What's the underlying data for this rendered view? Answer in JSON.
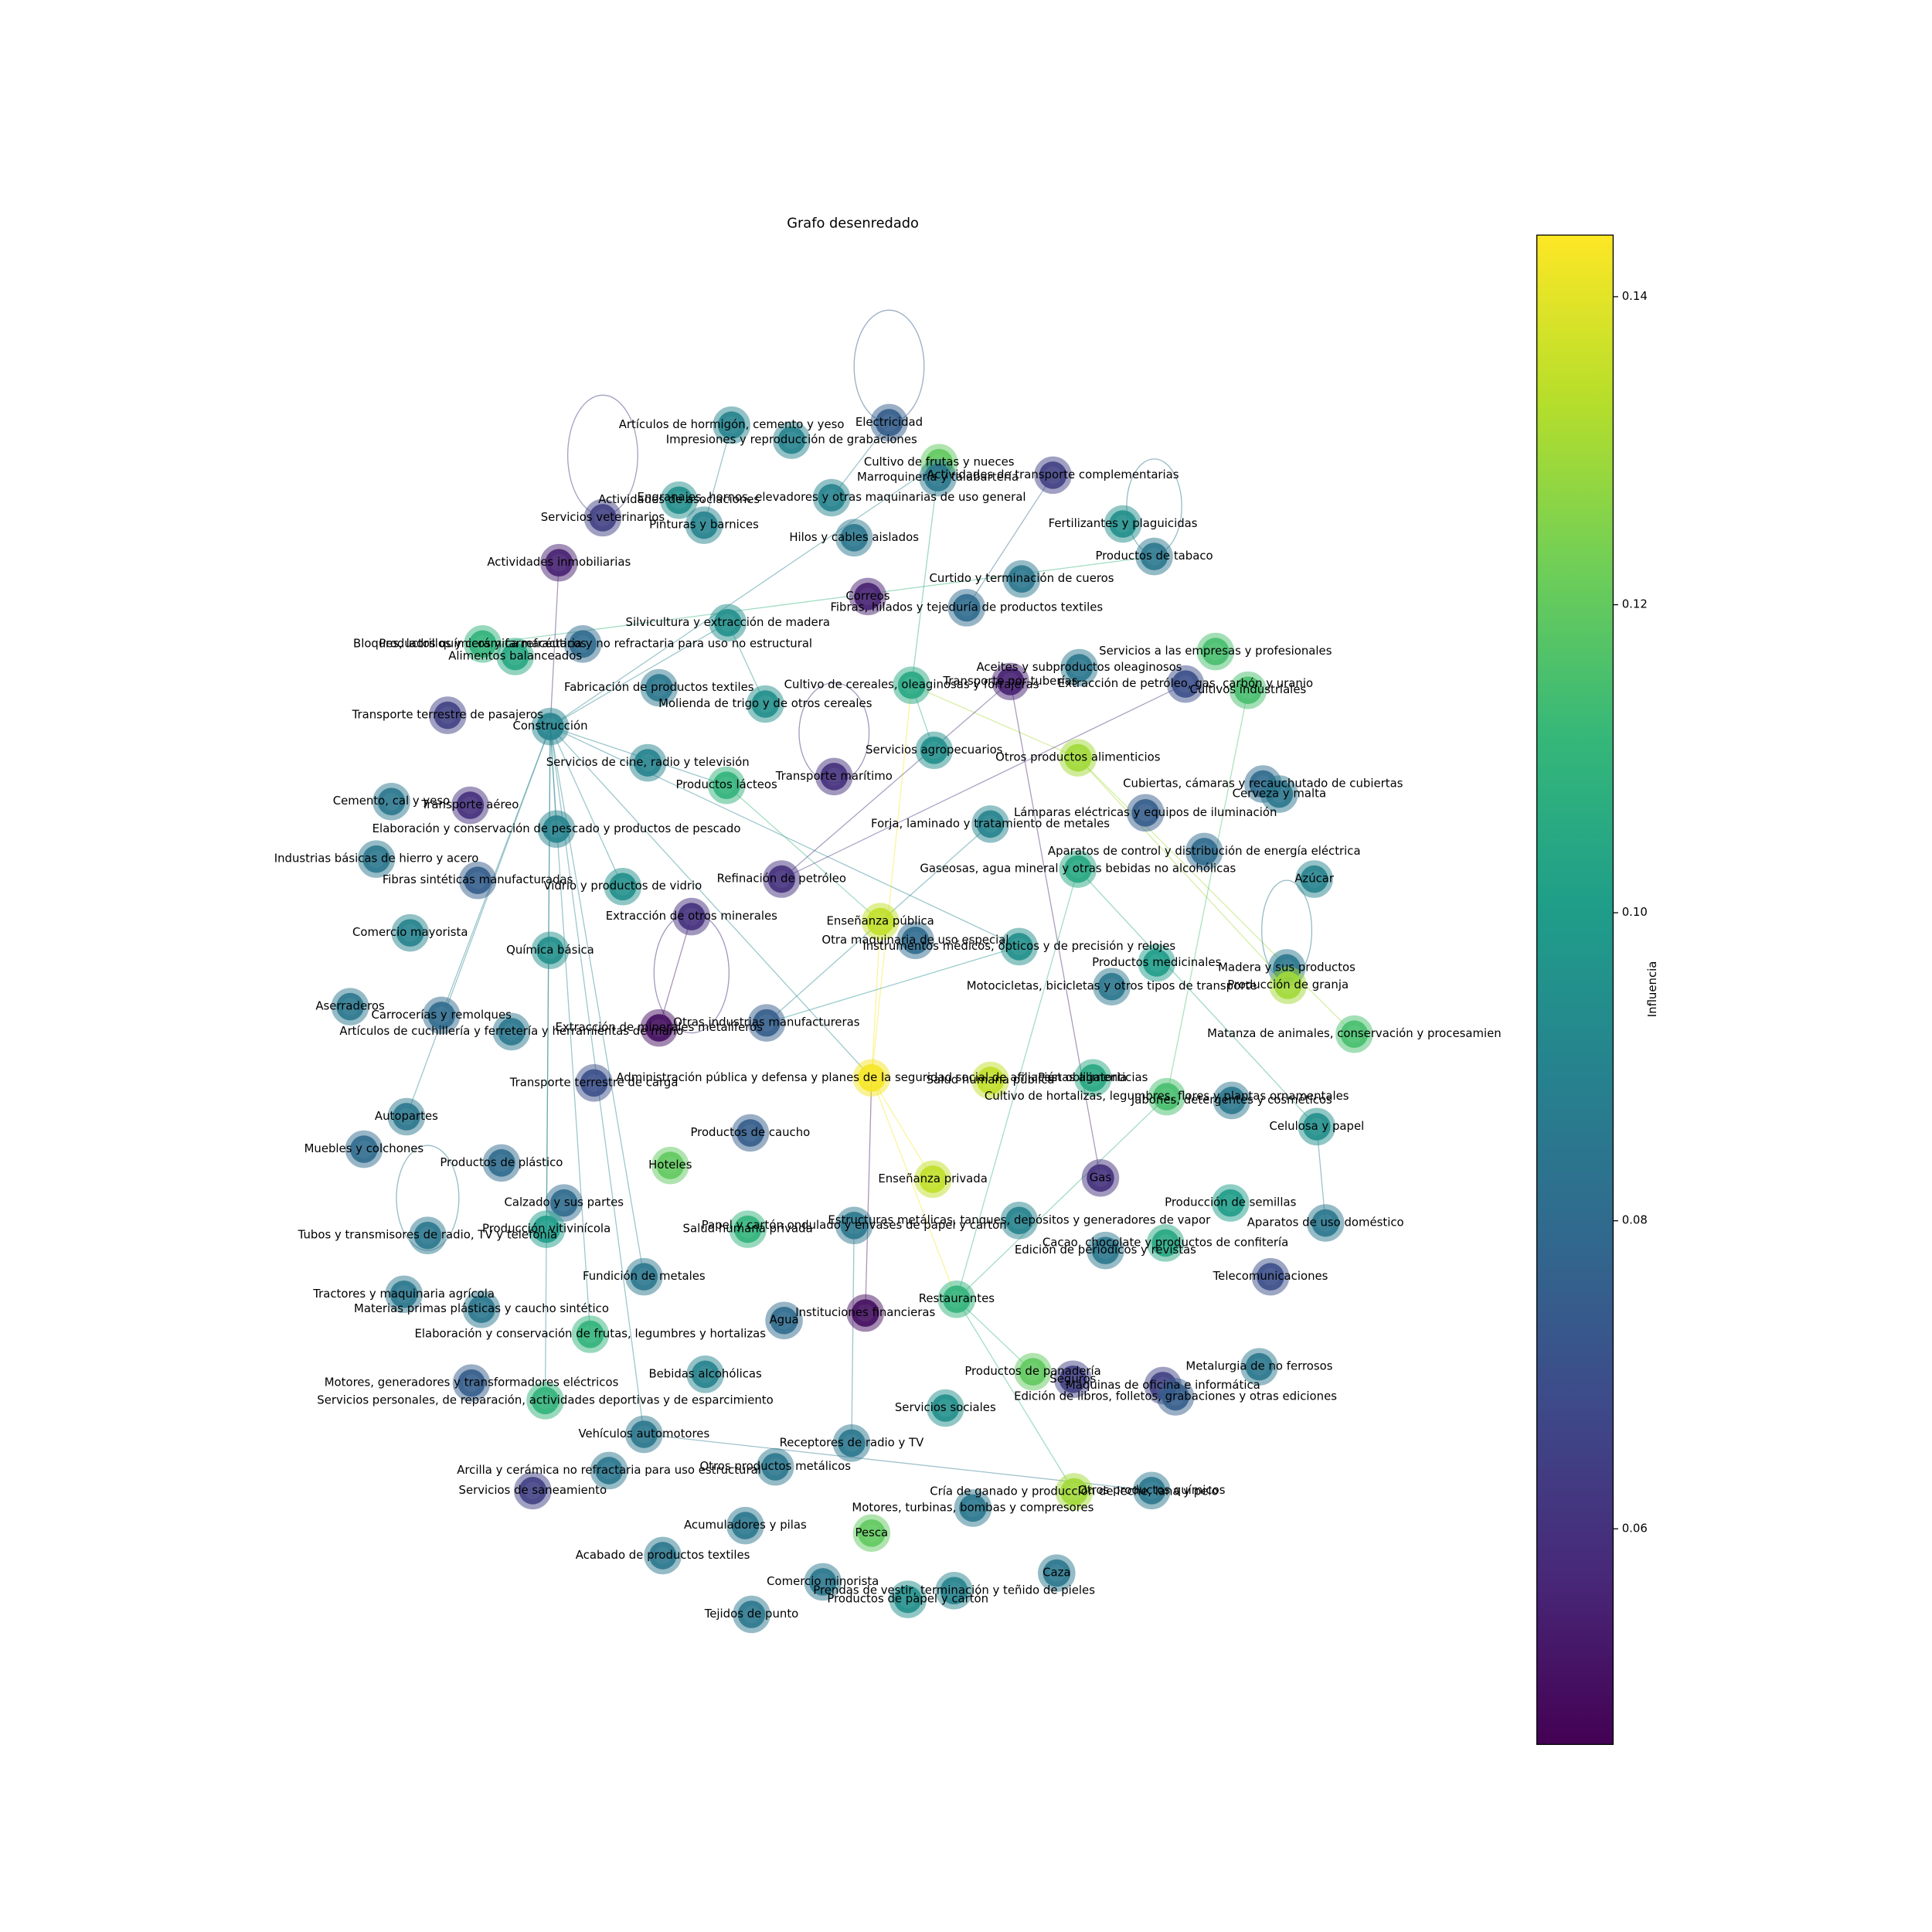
{
  "chart_data": {
    "type": "network",
    "title": "Grafo desenredado",
    "colorbar": {
      "label": "Influencia",
      "lim": [
        0.046,
        0.144
      ],
      "ticks": [
        0.06,
        0.08,
        {
          "value": 0.1,
          "label": "0.10"
        },
        0.12,
        0.14
      ]
    },
    "nodes": [
      {
        "label": "Artículos de hormigón, cemento y yeso",
        "influence": 0.09
      },
      {
        "label": "Impresiones y reproducción de grabaciones",
        "influence": 0.09
      },
      {
        "label": "Electricidad",
        "influence": 0.075
      },
      {
        "label": "Cultivo de frutas y nueces",
        "influence": 0.12
      },
      {
        "label": "Marroquinería y talabartería",
        "influence": 0.085
      },
      {
        "label": "Actividades de transporte complementarias",
        "influence": 0.065
      },
      {
        "label": "Actividades de asociaciones",
        "influence": 0.095
      },
      {
        "label": "Engranajes, hornos, elevadores y otras maquinarias de uso general",
        "influence": 0.09
      },
      {
        "label": "Servicios veterinarios",
        "influence": 0.065
      },
      {
        "label": "Pinturas y barnices",
        "influence": 0.09
      },
      {
        "label": "Fertilizantes y plaguicidas",
        "influence": 0.095
      },
      {
        "label": "Hilos y cables aislados",
        "influence": 0.085
      },
      {
        "label": "Actividades inmobiliarias",
        "influence": 0.055
      },
      {
        "label": "Productos de tabaco",
        "influence": 0.085
      },
      {
        "label": "Curtido y terminación de cueros",
        "influence": 0.085
      },
      {
        "label": "Correos",
        "influence": 0.055
      },
      {
        "label": "Fibras, hilados y tejeduría de productos textiles",
        "influence": 0.08
      },
      {
        "label": "Silvicultura y extracción de madera",
        "influence": 0.095
      },
      {
        "label": "Bloques, ladrillos y cerámica refractaria y no refractaria para uso no estructural",
        "influence": 0.08
      },
      {
        "label": "Productos químicos y farmacéuticos",
        "influence": 0.11
      },
      {
        "label": "Alimentos balanceados",
        "influence": 0.105
      },
      {
        "label": "Servicios a las empresas y profesionales",
        "influence": 0.115
      },
      {
        "label": "Aceites y subproductos oleaginosos",
        "influence": 0.085
      },
      {
        "label": "Transporte por tuberías",
        "influence": 0.055
      },
      {
        "label": "Extracción de petróleo, gas, carbón y uranio",
        "influence": 0.07
      },
      {
        "label": "Cultivo de cereales, oleaginosas y forrajeras",
        "influence": 0.105
      },
      {
        "label": "Cultivos industriales",
        "influence": 0.115
      },
      {
        "label": "Fabricación de productos textiles",
        "influence": 0.085
      },
      {
        "label": "Molienda de trigo y de otros cereales",
        "influence": 0.095
      },
      {
        "label": "Transporte terrestre de pasajeros",
        "influence": 0.065
      },
      {
        "label": "Construcción",
        "influence": 0.09
      },
      {
        "label": "Servicios agropecuarios",
        "influence": 0.095
      },
      {
        "label": "Otros productos alimenticios",
        "influence": 0.13
      },
      {
        "label": "Servicios de cine, radio y televisión",
        "influence": 0.09
      },
      {
        "label": "Transporte marítimo",
        "influence": 0.06
      },
      {
        "label": "Productos lácteos",
        "influence": 0.11
      },
      {
        "label": "Cubiertas, cámaras y recauchutado de cubiertas",
        "influence": 0.08
      },
      {
        "label": "Cerveza y malta",
        "influence": 0.085
      },
      {
        "label": "Cemento, cal y yeso",
        "influence": 0.085
      },
      {
        "label": "Transporte aéreo",
        "influence": 0.06
      },
      {
        "label": "Lámparas eléctricas y equipos de iluminación",
        "influence": 0.075
      },
      {
        "label": "Forja, laminado y tratamiento de metales",
        "influence": 0.09
      },
      {
        "label": "Elaboración y conservación de pescado y productos de pescado",
        "influence": 0.09
      },
      {
        "label": "Aparatos de control y distribución de energía eléctrica",
        "influence": 0.08
      },
      {
        "label": "Industrias básicas de hierro y acero",
        "influence": 0.085
      },
      {
        "label": "Gaseosas, agua mineral y otras bebidas no alcohólicas",
        "influence": 0.105
      },
      {
        "label": "Azúcar",
        "influence": 0.09
      },
      {
        "label": "Fibras sintéticas manufacturadas",
        "influence": 0.075
      },
      {
        "label": "Refinación de petróleo",
        "influence": 0.06
      },
      {
        "label": "Vidrio y productos de vidrio",
        "influence": 0.095
      },
      {
        "label": "Extracción de otros minerales",
        "influence": 0.06
      },
      {
        "label": "Enseñanza pública",
        "influence": 0.135
      },
      {
        "label": "Comercio mayorista",
        "influence": 0.09
      },
      {
        "label": "Otra maquinaria de uso especial",
        "influence": 0.08
      },
      {
        "label": "Instrumentos médicos, ópticos y de precisión y relojes",
        "influence": 0.095
      },
      {
        "label": "Química básica",
        "influence": 0.095
      },
      {
        "label": "Productos medicinales",
        "influence": 0.1
      },
      {
        "label": "Madera y sus productos",
        "influence": 0.085
      },
      {
        "label": "Producción de granja",
        "influence": 0.13
      },
      {
        "label": "Motocicletas, bicicletas y otros tipos de transporte",
        "influence": 0.085
      },
      {
        "label": "Aserraderos",
        "influence": 0.085
      },
      {
        "label": "Carrocerías y remolques",
        "influence": 0.08
      },
      {
        "label": "Otras industrias manufactureras",
        "influence": 0.075
      },
      {
        "label": "Extracción de minerales metalíferos",
        "influence": 0.05
      },
      {
        "label": "Artículos de cuchillería y ferretería y herramientas de mano",
        "influence": 0.085
      },
      {
        "label": "Matanza de animales, conservación y procesamien",
        "influence": 0.115
      },
      {
        "label": "Administración pública y defensa y planes de la seguridad social de afiliación obligatoria",
        "influence": 0.143
      },
      {
        "label": "Salud humana pública",
        "influence": 0.135
      },
      {
        "label": "Pastas alimenticias",
        "influence": 0.105
      },
      {
        "label": "Transporte terrestre de carga",
        "influence": 0.07
      },
      {
        "label": "Cultivo de hortalizas, legumbres, flores y plantas ornamentales",
        "influence": 0.115
      },
      {
        "label": "Jabones, detergentes y cosméticos",
        "influence": 0.085
      },
      {
        "label": "Autopartes",
        "influence": 0.085
      },
      {
        "label": "Celulosa y papel",
        "influence": 0.095
      },
      {
        "label": "Productos de caucho",
        "influence": 0.075
      },
      {
        "label": "Muebles y colchones",
        "influence": 0.08
      },
      {
        "label": "Productos de plástico",
        "influence": 0.08
      },
      {
        "label": "Hoteles",
        "influence": 0.12
      },
      {
        "label": "Gas",
        "influence": 0.06
      },
      {
        "label": "Enseñanza privada",
        "influence": 0.135
      },
      {
        "label": "Calzado y sus partes",
        "influence": 0.08
      },
      {
        "label": "Producción de semillas",
        "influence": 0.1
      },
      {
        "label": "Producción vitivinícola",
        "influence": 0.1
      },
      {
        "label": "Estructuras metálicas, tanques, depósitos y generadores de vapor",
        "influence": 0.09
      },
      {
        "label": "Papel y cartón ondulado y envases de papel y cartón",
        "influence": 0.085
      },
      {
        "label": "Salud humana privada",
        "influence": 0.11
      },
      {
        "label": "Aparatos de uso doméstico",
        "influence": 0.085
      },
      {
        "label": "Tubos y transmisores de radio, TV y telefonía",
        "influence": 0.085
      },
      {
        "label": "Cacao, chocolate y productos de confitería",
        "influence": 0.105
      },
      {
        "label": "Edición de periódicos y revistas",
        "influence": 0.085
      },
      {
        "label": "Fundición de metales",
        "influence": 0.085
      },
      {
        "label": "Telecomunicaciones",
        "influence": 0.07
      },
      {
        "label": "Restaurantes",
        "influence": 0.11
      },
      {
        "label": "Tractores y maquinaria agrícola",
        "influence": 0.085
      },
      {
        "label": "Materias primas plásticas y caucho sintético",
        "influence": 0.085
      },
      {
        "label": "Instituciones financieras",
        "influence": 0.05
      },
      {
        "label": "Agua",
        "influence": 0.08
      },
      {
        "label": "Elaboración y conservación de frutas, legumbres y hortalizas",
        "influence": 0.11
      },
      {
        "label": "Metalurgia de no ferrosos",
        "influence": 0.085
      },
      {
        "label": "Productos de panadería",
        "influence": 0.12
      },
      {
        "label": "Seguros",
        "influence": 0.065
      },
      {
        "label": "Máquinas de oficina e informática",
        "influence": 0.065
      },
      {
        "label": "Bebidas alcohólicas",
        "influence": 0.09
      },
      {
        "label": "Edición de libros, folletos, grabaciones y otras ediciones",
        "influence": 0.075
      },
      {
        "label": "Motores, generadores y transformadores eléctricos",
        "influence": 0.075
      },
      {
        "label": "Servicios personales, de reparación, actividades deportivas y de esparcimiento",
        "influence": 0.11
      },
      {
        "label": "Servicios sociales",
        "influence": 0.095
      },
      {
        "label": "Vehículos automotores",
        "influence": 0.085
      },
      {
        "label": "Receptores de radio y TV",
        "influence": 0.085
      },
      {
        "label": "Arcilla y cerámica no refractaria para uso estructural",
        "influence": 0.085
      },
      {
        "label": "Otros productos metálicos",
        "influence": 0.085
      },
      {
        "label": "Servicios de saneamiento",
        "influence": 0.065
      },
      {
        "label": "Cría de ganado y producción de leche, lana y pelo",
        "influence": 0.13
      },
      {
        "label": "Otros productos químicos",
        "influence": 0.085
      },
      {
        "label": "Motores, turbinas, bombas y compresores",
        "influence": 0.085
      },
      {
        "label": "Acumuladores y pilas",
        "influence": 0.085
      },
      {
        "label": "Pesca",
        "influence": 0.12
      },
      {
        "label": "Acabado de productos textiles",
        "influence": 0.085
      },
      {
        "label": "Caza",
        "influence": 0.085
      },
      {
        "label": "Comercio minorista",
        "influence": 0.085
      },
      {
        "label": "Prendas de vestir, terminación y teñido de pieles",
        "influence": 0.09
      },
      {
        "label": "Productos de papel y cartón",
        "influence": 0.095
      },
      {
        "label": "Tejidos de punto",
        "influence": 0.085
      }
    ]
  }
}
